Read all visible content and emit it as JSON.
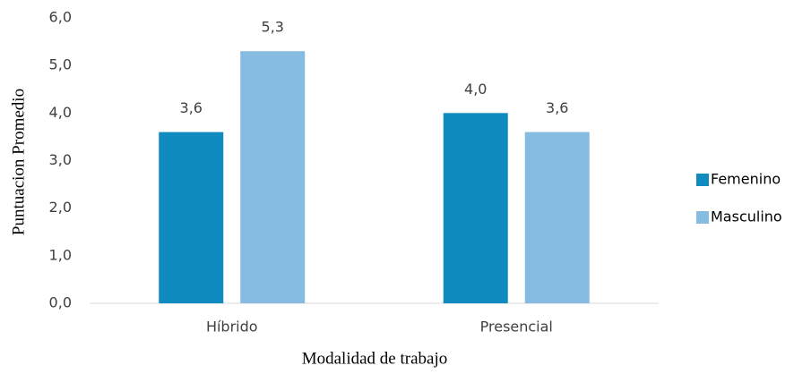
{
  "chart_data": {
    "type": "bar",
    "x_label": "Modalidad de trabajo",
    "y_label": "Puntuacion Promedio",
    "categories": [
      "Híbrido",
      "Presencial"
    ],
    "series": [
      {
        "name": "Femenino",
        "color": "#108bc0",
        "values": [
          3.6,
          4.0
        ],
        "value_labels": [
          "3,6",
          "4,0"
        ]
      },
      {
        "name": "Masculino",
        "color": "#86bce2",
        "values": [
          5.3,
          3.6
        ],
        "value_labels": [
          "5,3",
          "3,6"
        ]
      }
    ],
    "ylim": [
      0,
      6
    ],
    "yticks": [
      {
        "value": 0,
        "label": "0,0"
      },
      {
        "value": 1,
        "label": "1,0"
      },
      {
        "value": 2,
        "label": "2,0"
      },
      {
        "value": 3,
        "label": "3,0"
      },
      {
        "value": 4,
        "label": "4,0"
      },
      {
        "value": 5,
        "label": "5,0"
      },
      {
        "value": 6,
        "label": "6,0"
      }
    ],
    "grid": false,
    "legend": "right"
  }
}
